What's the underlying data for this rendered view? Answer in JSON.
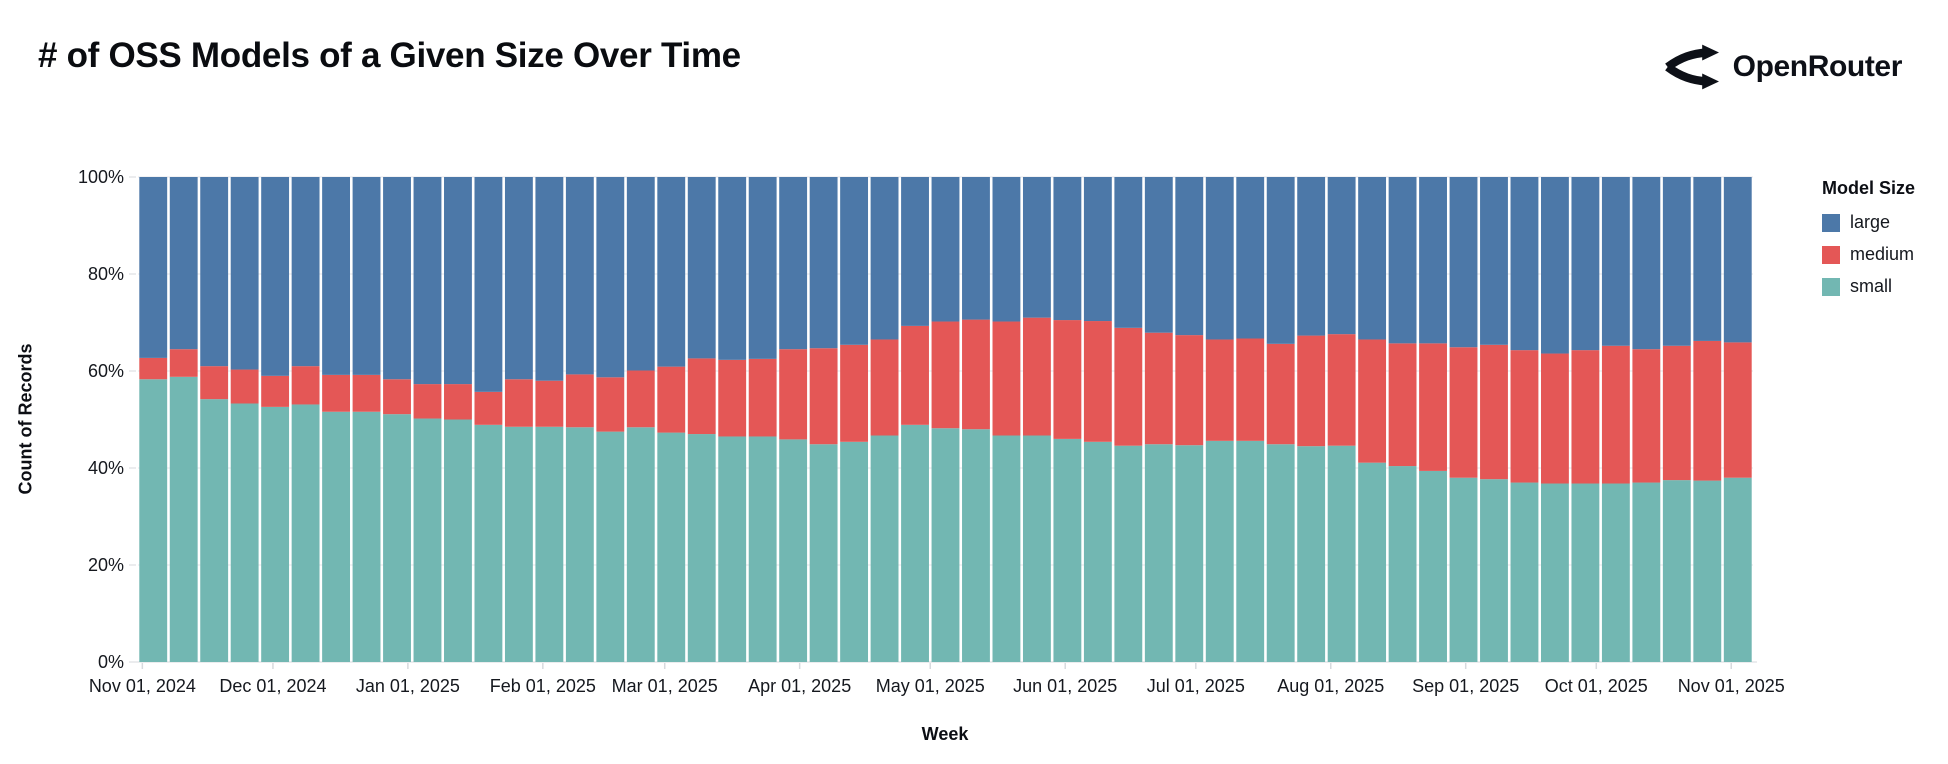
{
  "header": {
    "title": "# of OSS Models of a Given Size Over Time",
    "brand": "OpenRouter"
  },
  "legend": {
    "title": "Model Size",
    "items": [
      {
        "label": "large",
        "color": "#4c78a8"
      },
      {
        "label": "medium",
        "color": "#e45756"
      },
      {
        "label": "small",
        "color": "#72b7b2"
      }
    ]
  },
  "axes": {
    "y": {
      "title": "Count of Records"
    },
    "x": {
      "title": "Week"
    }
  },
  "chart_data": {
    "type": "bar",
    "stacked": "percent",
    "title": "# of OSS Models of a Given Size Over Time",
    "xlabel": "Week",
    "ylabel": "Count of Records",
    "ylim": [
      0,
      100
    ],
    "grid": true,
    "legend_title": "Model Size",
    "legend_position": "right",
    "domain_days": 371,
    "y_ticks": [
      {
        "label": "0%",
        "value": 0
      },
      {
        "label": "20%",
        "value": 20
      },
      {
        "label": "40%",
        "value": 40
      },
      {
        "label": "60%",
        "value": 60
      },
      {
        "label": "80%",
        "value": 80
      },
      {
        "label": "100%",
        "value": 100
      }
    ],
    "x_ticks": [
      {
        "label": "Nov 01, 2024",
        "day": 0
      },
      {
        "label": "Dec 01, 2024",
        "day": 30
      },
      {
        "label": "Jan 01, 2025",
        "day": 61
      },
      {
        "label": "Feb 01, 2025",
        "day": 92
      },
      {
        "label": "Mar 01, 2025",
        "day": 120
      },
      {
        "label": "Apr 01, 2025",
        "day": 151
      },
      {
        "label": "May 01, 2025",
        "day": 181
      },
      {
        "label": "Jun 01, 2025",
        "day": 212
      },
      {
        "label": "Jul 01, 2025",
        "day": 242
      },
      {
        "label": "Aug 01, 2025",
        "day": 273
      },
      {
        "label": "Sep 01, 2025",
        "day": 304
      },
      {
        "label": "Oct 01, 2025",
        "day": 334
      },
      {
        "label": "Nov 01, 2025",
        "day": 365
      }
    ],
    "categories": [
      "2024-11-01",
      "2024-11-08",
      "2024-11-15",
      "2024-11-22",
      "2024-11-29",
      "2024-12-06",
      "2024-12-13",
      "2024-12-20",
      "2024-12-27",
      "2025-01-03",
      "2025-01-10",
      "2025-01-17",
      "2025-01-24",
      "2025-01-31",
      "2025-02-07",
      "2025-02-14",
      "2025-02-21",
      "2025-02-28",
      "2025-03-07",
      "2025-03-14",
      "2025-03-21",
      "2025-03-28",
      "2025-04-04",
      "2025-04-11",
      "2025-04-18",
      "2025-04-25",
      "2025-05-02",
      "2025-05-09",
      "2025-05-16",
      "2025-05-23",
      "2025-05-30",
      "2025-06-06",
      "2025-06-13",
      "2025-06-20",
      "2025-06-27",
      "2025-07-04",
      "2025-07-11",
      "2025-07-18",
      "2025-07-25",
      "2025-08-01",
      "2025-08-08",
      "2025-08-15",
      "2025-08-22",
      "2025-08-29",
      "2025-09-05",
      "2025-09-12",
      "2025-09-19",
      "2025-09-26",
      "2025-10-03",
      "2025-10-10",
      "2025-10-17",
      "2025-10-24",
      "2025-10-31"
    ],
    "series": [
      {
        "name": "small",
        "color": "#72b7b2",
        "values": [
          58.3,
          58.8,
          54.2,
          53.3,
          52.6,
          53.1,
          51.6,
          51.6,
          51.1,
          50.2,
          50.0,
          48.9,
          48.5,
          48.5,
          48.4,
          47.5,
          48.4,
          47.3,
          47.0,
          46.5,
          46.5,
          45.9,
          44.9,
          45.4,
          46.7,
          48.9,
          48.2,
          48.0,
          46.7,
          46.7,
          46.0,
          45.4,
          44.6,
          44.9,
          44.7,
          45.6,
          45.6,
          44.9,
          44.5,
          44.6,
          41.1,
          40.4,
          39.4,
          38.0,
          37.7,
          37.0,
          36.8,
          36.8,
          36.8,
          37.0,
          37.5,
          37.4,
          38.0
        ]
      },
      {
        "name": "medium",
        "color": "#e45756",
        "values": [
          4.4,
          5.7,
          6.8,
          7.0,
          6.4,
          7.9,
          7.6,
          7.6,
          7.2,
          7.1,
          7.3,
          6.8,
          9.8,
          9.5,
          10.9,
          11.2,
          11.7,
          13.6,
          15.6,
          15.8,
          16.0,
          18.6,
          19.8,
          20.0,
          19.8,
          20.4,
          22.0,
          22.6,
          23.5,
          24.3,
          24.5,
          24.9,
          24.3,
          23.0,
          22.7,
          20.9,
          21.1,
          20.7,
          22.8,
          23.0,
          25.4,
          25.3,
          26.3,
          26.9,
          27.7,
          27.3,
          26.8,
          27.5,
          28.4,
          27.5,
          27.7,
          28.8,
          27.9
        ]
      },
      {
        "name": "large",
        "color": "#4c78a8",
        "values": [
          37.3,
          35.5,
          39.0,
          39.7,
          41.0,
          39.0,
          40.8,
          40.8,
          41.7,
          42.7,
          42.7,
          44.3,
          41.7,
          42.0,
          40.7,
          41.3,
          39.9,
          39.1,
          37.4,
          37.7,
          37.5,
          35.5,
          35.3,
          34.6,
          33.5,
          30.7,
          29.8,
          29.4,
          29.8,
          29.0,
          29.5,
          29.7,
          31.1,
          32.1,
          32.6,
          33.5,
          33.3,
          34.4,
          32.7,
          32.4,
          33.5,
          34.3,
          34.3,
          35.1,
          34.6,
          35.7,
          36.4,
          35.7,
          34.8,
          35.5,
          34.8,
          33.8,
          34.1
        ]
      }
    ]
  }
}
